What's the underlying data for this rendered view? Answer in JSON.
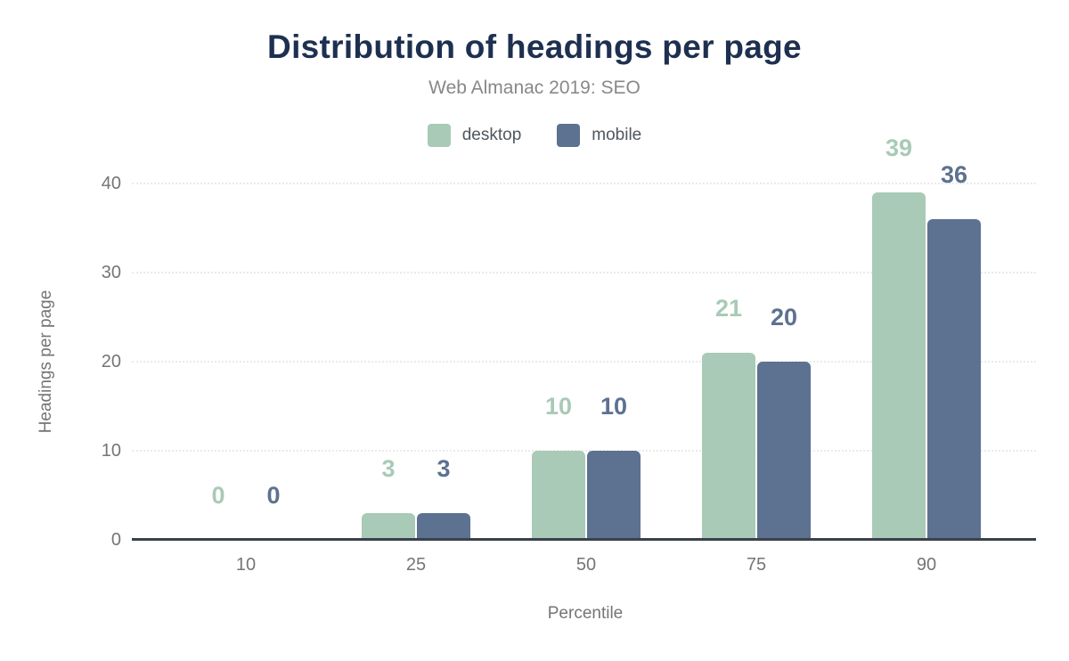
{
  "chart_data": {
    "type": "bar",
    "title": "Distribution of headings per page",
    "subtitle": "Web Almanac 2019: SEO",
    "xlabel": "Percentile",
    "ylabel": "Headings per page",
    "categories": [
      "10",
      "25",
      "50",
      "75",
      "90"
    ],
    "series": [
      {
        "name": "desktop",
        "color": "#a8cab6",
        "values": [
          0,
          3,
          10,
          21,
          39
        ]
      },
      {
        "name": "mobile",
        "color": "#5d7190",
        "values": [
          0,
          3,
          10,
          20,
          36
        ]
      }
    ],
    "ylim": [
      0,
      40
    ],
    "yticks": [
      0,
      10,
      20,
      30,
      40
    ],
    "grid": "horizontal-dotted",
    "legend_position": "top",
    "bar_labels": true
  },
  "theme": {
    "title_color": "#1e3050",
    "subtitle_color": "#888888",
    "axis_text_color": "#757575",
    "legend_text_color": "#4f575f",
    "axis_line_color": "#3a414b",
    "background": "#ffffff"
  }
}
